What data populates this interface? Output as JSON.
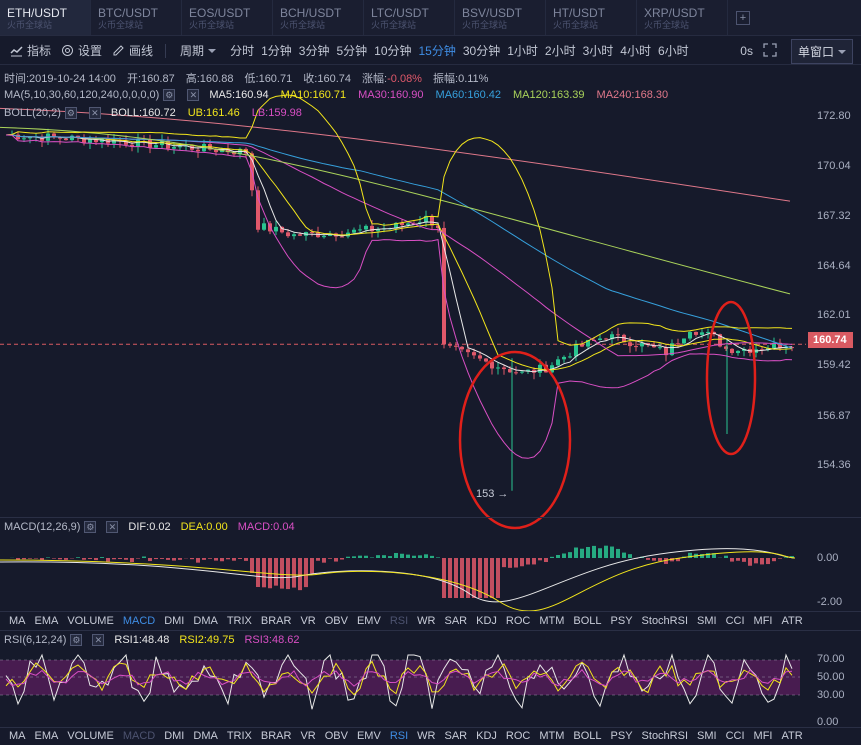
{
  "tabs": [
    {
      "pair": "ETH/USDT",
      "sub": "火币全球站",
      "active": true
    },
    {
      "pair": "BTC/USDT",
      "sub": "火币全球站"
    },
    {
      "pair": "EOS/USDT",
      "sub": "火币全球站"
    },
    {
      "pair": "BCH/USDT",
      "sub": "火币全球站"
    },
    {
      "pair": "LTC/USDT",
      "sub": "火币全球站"
    },
    {
      "pair": "BSV/USDT",
      "sub": "火币全球站"
    },
    {
      "pair": "HT/USDT",
      "sub": "火币全球站"
    },
    {
      "pair": "XRP/USDT",
      "sub": "火币全球站"
    }
  ],
  "add_tab": "+",
  "toolbar": {
    "indicator": "指标",
    "settings": "设置",
    "draw": "画线",
    "cycle": "周期"
  },
  "periods": [
    "分时",
    "1分钟",
    "3分钟",
    "5分钟",
    "10分钟",
    "15分钟",
    "30分钟",
    "1小时",
    "2小时",
    "3小时",
    "4小时",
    "6小时"
  ],
  "active_period": "15分钟",
  "right": {
    "zero": "0s",
    "single_window": "单窗口"
  },
  "ohlc": {
    "time": "时间:2019-10-24 14:00",
    "open": "开:160.87",
    "high": "高:160.88",
    "low": "低:160.71",
    "close": "收:160.74",
    "change": "涨幅:",
    "change_val": "-0.08%",
    "amp": "振幅:0.11%"
  },
  "ma": {
    "label": "MA(5,10,30,60,120,240,0,0,0,0)",
    "ma5": "MA5:160.94",
    "ma10": "MA10:160.71",
    "ma30": "MA30:160.90",
    "ma60": "MA60:160.42",
    "ma120": "MA120:163.39",
    "ma240": "MA240:168.30"
  },
  "boll": {
    "label": "BOLL(20,2)",
    "boll": "BOLL:160.72",
    "ub": "UB:161.46",
    "lb": "LB:159.98"
  },
  "colors": {
    "ma5": "#e8e8e8",
    "ma10": "#f2e51c",
    "ma30": "#d84fc4",
    "ma60": "#36a0dc",
    "ma120": "#a9d25a",
    "ma240": "#e0788a",
    "up": "#29c490",
    "down": "#e0586a",
    "annot": "#e0201a"
  },
  "price_axis": [
    "172.80",
    "170.04",
    "167.32",
    "164.64",
    "162.01",
    "159.42",
    "156.87",
    "154.36"
  ],
  "last_price": "160.74",
  "low_marker": "153",
  "macd": {
    "label": "MACD(12,26,9)",
    "dif": "DIF:0.02",
    "dea": "DEA:0.00",
    "macd": "MACD:0.04",
    "axis": [
      "0.00",
      "-2.00"
    ]
  },
  "indicators": [
    "MA",
    "EMA",
    "VOLUME",
    "MACD",
    "DMI",
    "DMA",
    "TRIX",
    "BRAR",
    "VR",
    "OBV",
    "EMV",
    "RSI",
    "WR",
    "SAR",
    "KDJ",
    "ROC",
    "MTM",
    "BOLL",
    "PSY",
    "StochRSI",
    "SMI",
    "CCI",
    "MFI",
    "ATR"
  ],
  "rsi": {
    "label": "RSI(6,12,24)",
    "rsi1": "RSI1:48.48",
    "rsi2": "RSI2:49.75",
    "rsi3": "RSI3:48.62",
    "axis": [
      "70.00",
      "50.00",
      "30.00",
      "0.00"
    ]
  }
}
